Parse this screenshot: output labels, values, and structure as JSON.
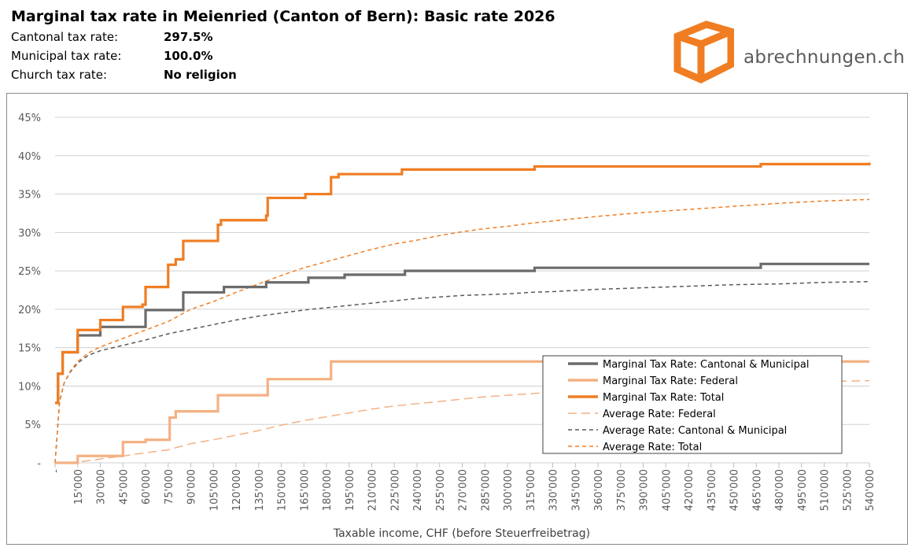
{
  "header": {
    "title": "Marginal tax rate in Meienried (Canton of Bern): Basic rate 2026",
    "rows": [
      {
        "label": "Cantonal tax rate:",
        "value": "297.5%"
      },
      {
        "label": "Municipal tax rate:",
        "value": "100.0%"
      },
      {
        "label": "Church tax rate:",
        "value": "No religion"
      }
    ]
  },
  "logo": {
    "text": "abrechnungen.ch",
    "icon": "box-logo-icon",
    "color": "#f07d22"
  },
  "chart_data": {
    "type": "line",
    "xlabel": "Taxable income, CHF (before Steuerfreibetrag)",
    "ylabel": "",
    "xlim": [
      0,
      540000
    ],
    "ylim": [
      0,
      45
    ],
    "grid": true,
    "legend_position": "bottom-right",
    "y_ticks": [
      {
        "v": 0,
        "label": "-"
      },
      {
        "v": 5,
        "label": "5%"
      },
      {
        "v": 10,
        "label": "10%"
      },
      {
        "v": 15,
        "label": "15%"
      },
      {
        "v": 20,
        "label": "20%"
      },
      {
        "v": 25,
        "label": "25%"
      },
      {
        "v": 30,
        "label": "30%"
      },
      {
        "v": 35,
        "label": "35%"
      },
      {
        "v": 40,
        "label": "40%"
      },
      {
        "v": 45,
        "label": "45%"
      }
    ],
    "x_ticks": [
      {
        "v": 0,
        "label": "-"
      },
      {
        "v": 15000,
        "label": "15'000"
      },
      {
        "v": 30000,
        "label": "30'000"
      },
      {
        "v": 45000,
        "label": "45'000"
      },
      {
        "v": 60000,
        "label": "60'000"
      },
      {
        "v": 75000,
        "label": "75'000"
      },
      {
        "v": 90000,
        "label": "90'000"
      },
      {
        "v": 105000,
        "label": "105'000"
      },
      {
        "v": 120000,
        "label": "120'000"
      },
      {
        "v": 135000,
        "label": "135'000"
      },
      {
        "v": 150000,
        "label": "150'000"
      },
      {
        "v": 165000,
        "label": "165'000"
      },
      {
        "v": 180000,
        "label": "180'000"
      },
      {
        "v": 195000,
        "label": "195'000"
      },
      {
        "v": 210000,
        "label": "210'000"
      },
      {
        "v": 225000,
        "label": "225'000"
      },
      {
        "v": 240000,
        "label": "240'000"
      },
      {
        "v": 255000,
        "label": "255'000"
      },
      {
        "v": 270000,
        "label": "270'000"
      },
      {
        "v": 285000,
        "label": "285'000"
      },
      {
        "v": 300000,
        "label": "300'000"
      },
      {
        "v": 315000,
        "label": "315'000"
      },
      {
        "v": 330000,
        "label": "330'000"
      },
      {
        "v": 345000,
        "label": "345'000"
      },
      {
        "v": 360000,
        "label": "360'000"
      },
      {
        "v": 375000,
        "label": "375'000"
      },
      {
        "v": 390000,
        "label": "390'000"
      },
      {
        "v": 405000,
        "label": "405'000"
      },
      {
        "v": 420000,
        "label": "420'000"
      },
      {
        "v": 435000,
        "label": "435'000"
      },
      {
        "v": 450000,
        "label": "450'000"
      },
      {
        "v": 465000,
        "label": "465'000"
      },
      {
        "v": 480000,
        "label": "480'000"
      },
      {
        "v": 495000,
        "label": "495'000"
      },
      {
        "v": 510000,
        "label": "510'000"
      },
      {
        "v": 525000,
        "label": "525'000"
      },
      {
        "v": 540000,
        "label": "540'000"
      }
    ],
    "series": [
      {
        "name": "Marginal Tax Rate: Cantonal & Municipal",
        "color": "#6b6b6b",
        "style": "solid",
        "step": true,
        "points": [
          [
            0,
            7.8
          ],
          [
            2000,
            11.6
          ],
          [
            5000,
            14.4
          ],
          [
            15000,
            16.6
          ],
          [
            30000,
            17.7
          ],
          [
            60000,
            19.9
          ],
          [
            85000,
            22.2
          ],
          [
            112000,
            22.9
          ],
          [
            140000,
            23.5
          ],
          [
            168000,
            24.1
          ],
          [
            192000,
            24.5
          ],
          [
            232000,
            25.0
          ],
          [
            318000,
            25.4
          ],
          [
            468000,
            25.9
          ],
          [
            540000,
            25.9
          ]
        ]
      },
      {
        "name": "Marginal Tax Rate: Federal",
        "color": "#f4b183",
        "style": "solid",
        "step": true,
        "points": [
          [
            0,
            0
          ],
          [
            15000,
            0.9
          ],
          [
            45000,
            2.7
          ],
          [
            60000,
            3.0
          ],
          [
            76000,
            5.9
          ],
          [
            80000,
            6.7
          ],
          [
            108000,
            8.8
          ],
          [
            141000,
            10.9
          ],
          [
            183000,
            13.2
          ],
          [
            540000,
            13.2
          ]
        ]
      },
      {
        "name": "Marginal Tax Rate: Total",
        "color": "#f07d22",
        "style": "solid",
        "step": true,
        "points": [
          [
            0,
            7.8
          ],
          [
            2000,
            11.6
          ],
          [
            5000,
            14.4
          ],
          [
            15000,
            17.3
          ],
          [
            30000,
            18.6
          ],
          [
            45000,
            20.3
          ],
          [
            58000,
            20.6
          ],
          [
            60000,
            22.9
          ],
          [
            75000,
            25.8
          ],
          [
            80000,
            26.5
          ],
          [
            85000,
            28.9
          ],
          [
            108000,
            31.0
          ],
          [
            110000,
            31.6
          ],
          [
            140000,
            32.2
          ],
          [
            141000,
            34.5
          ],
          [
            166000,
            35.0
          ],
          [
            183000,
            37.2
          ],
          [
            188000,
            37.6
          ],
          [
            230000,
            38.2
          ],
          [
            318000,
            38.6
          ],
          [
            468000,
            38.9
          ],
          [
            540000,
            39.1
          ]
        ]
      },
      {
        "name": "Average Rate: Federal",
        "color": "#f4b183",
        "style": "longdash",
        "step": false,
        "points": [
          [
            0,
            0
          ],
          [
            15000,
            0.1
          ],
          [
            30000,
            0.5
          ],
          [
            45000,
            0.9
          ],
          [
            60000,
            1.3
          ],
          [
            75000,
            1.7
          ],
          [
            90000,
            2.5
          ],
          [
            105000,
            3.0
          ],
          [
            120000,
            3.6
          ],
          [
            135000,
            4.2
          ],
          [
            150000,
            4.9
          ],
          [
            165000,
            5.5
          ],
          [
            180000,
            6.0
          ],
          [
            195000,
            6.5
          ],
          [
            210000,
            7.0
          ],
          [
            225000,
            7.4
          ],
          [
            240000,
            7.7
          ],
          [
            255000,
            8.0
          ],
          [
            270000,
            8.3
          ],
          [
            285000,
            8.6
          ],
          [
            300000,
            8.8
          ],
          [
            315000,
            9.0
          ],
          [
            330000,
            9.2
          ],
          [
            360000,
            9.5
          ],
          [
            390000,
            9.8
          ],
          [
            420000,
            10.0
          ],
          [
            450000,
            10.2
          ],
          [
            480000,
            10.4
          ],
          [
            510000,
            10.6
          ],
          [
            540000,
            10.7
          ]
        ]
      },
      {
        "name": "Average Rate: Cantonal & Municipal",
        "color": "#595959",
        "style": "dash",
        "step": false,
        "points": [
          [
            0,
            0
          ],
          [
            3000,
            8.0
          ],
          [
            6000,
            10.4
          ],
          [
            10000,
            11.8
          ],
          [
            15000,
            13.0
          ],
          [
            22000,
            14.0
          ],
          [
            30000,
            14.6
          ],
          [
            45000,
            15.3
          ],
          [
            60000,
            16.0
          ],
          [
            75000,
            16.8
          ],
          [
            90000,
            17.4
          ],
          [
            105000,
            18.0
          ],
          [
            120000,
            18.6
          ],
          [
            135000,
            19.1
          ],
          [
            150000,
            19.5
          ],
          [
            165000,
            19.9
          ],
          [
            180000,
            20.2
          ],
          [
            195000,
            20.5
          ],
          [
            210000,
            20.8
          ],
          [
            225000,
            21.1
          ],
          [
            240000,
            21.4
          ],
          [
            255000,
            21.6
          ],
          [
            270000,
            21.8
          ],
          [
            285000,
            21.9
          ],
          [
            300000,
            22.0
          ],
          [
            315000,
            22.2
          ],
          [
            330000,
            22.3
          ],
          [
            360000,
            22.6
          ],
          [
            390000,
            22.8
          ],
          [
            420000,
            23.0
          ],
          [
            450000,
            23.2
          ],
          [
            480000,
            23.3
          ],
          [
            510000,
            23.5
          ],
          [
            540000,
            23.6
          ]
        ]
      },
      {
        "name": "Average Rate: Total",
        "color": "#f07d22",
        "style": "dash",
        "step": false,
        "points": [
          [
            0,
            0
          ],
          [
            3000,
            8.0
          ],
          [
            6000,
            10.4
          ],
          [
            10000,
            11.9
          ],
          [
            15000,
            13.2
          ],
          [
            22000,
            14.3
          ],
          [
            30000,
            15.1
          ],
          [
            45000,
            16.2
          ],
          [
            60000,
            17.3
          ],
          [
            75000,
            18.4
          ],
          [
            90000,
            20.0
          ],
          [
            105000,
            21.0
          ],
          [
            120000,
            22.2
          ],
          [
            135000,
            23.3
          ],
          [
            150000,
            24.4
          ],
          [
            165000,
            25.4
          ],
          [
            180000,
            26.2
          ],
          [
            195000,
            27.0
          ],
          [
            210000,
            27.8
          ],
          [
            225000,
            28.5
          ],
          [
            240000,
            29.0
          ],
          [
            255000,
            29.6
          ],
          [
            270000,
            30.1
          ],
          [
            285000,
            30.5
          ],
          [
            300000,
            30.8
          ],
          [
            315000,
            31.2
          ],
          [
            330000,
            31.5
          ],
          [
            360000,
            32.1
          ],
          [
            390000,
            32.6
          ],
          [
            420000,
            33.0
          ],
          [
            450000,
            33.4
          ],
          [
            480000,
            33.8
          ],
          [
            510000,
            34.1
          ],
          [
            540000,
            34.3
          ]
        ]
      }
    ]
  }
}
